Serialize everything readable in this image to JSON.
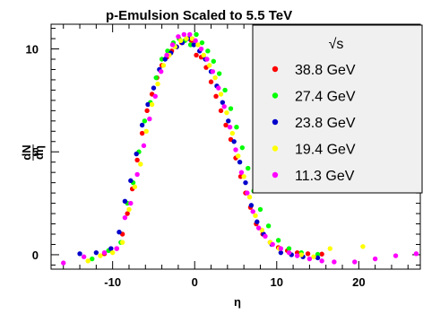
{
  "chart_data": {
    "type": "scatter",
    "title": "p-Emulsion Scaled to 5.5 TeV",
    "xlabel": "η",
    "ylabel_numerator": "dN",
    "ylabel_denominator": "dη",
    "xlim": [
      -17.5,
      27.5
    ],
    "ylim": [
      -0.7,
      11.2
    ],
    "xticks": [
      -10,
      0,
      10,
      20
    ],
    "yticks": [
      0,
      5,
      10
    ],
    "grid": false,
    "legend_placement": "top-right",
    "legend_header": "√s",
    "series": [
      {
        "name": "38.8 GeV",
        "color": "#ff0000",
        "x": [
          -11,
          -9.5,
          -8.8,
          -8.2,
          -7.6,
          -7,
          -6.4,
          -5.8,
          -5.2,
          -4.6,
          -4,
          -3.4,
          -2.8,
          -2.2,
          -1.6,
          -1,
          -0.4,
          0.2,
          0.8,
          1.4,
          2,
          2.6,
          3.2,
          3.8,
          4.4,
          5,
          5.6,
          6.2,
          6.8,
          7.5,
          8.3,
          9.2,
          10.2,
          11.3,
          12.5,
          13.8,
          15.5
        ],
        "y": [
          0.05,
          0.3,
          1.0,
          2.0,
          3.2,
          4.6,
          5.9,
          7.0,
          7.8,
          8.6,
          9.2,
          9.6,
          9.9,
          10.1,
          10.3,
          10.5,
          10.4,
          9.7,
          9.6,
          9.1,
          8.4,
          7.7,
          7.0,
          6.3,
          5.6,
          4.7,
          3.8,
          3.0,
          2.3,
          1.5,
          1.0,
          0.6,
          0.35,
          0.2,
          0.1,
          0.05,
          0.03
        ]
      },
      {
        "name": "27.4 GeV",
        "color": "#00ff00",
        "x": [
          -12.5,
          -10.5,
          -9,
          -8.2,
          -7.5,
          -6.8,
          -6.1,
          -5.4,
          -4.7,
          -4,
          -3.3,
          -2.6,
          -1.9,
          -1.2,
          -0.5,
          0.2,
          0.9,
          1.6,
          2.3,
          3,
          3.7,
          4.4,
          5.1,
          5.8,
          6.5,
          7.2,
          8,
          9,
          10.2,
          11.5,
          13,
          15
        ],
        "y": [
          -0.2,
          0.2,
          0.6,
          2.5,
          3.5,
          5.0,
          6.5,
          7.4,
          8.6,
          9.5,
          9.9,
          10.3,
          10.5,
          10.4,
          10.2,
          10.7,
          10.3,
          9.9,
          9.4,
          8.8,
          8.0,
          7.1,
          6.2,
          5.2,
          4.2,
          3.1,
          2.2,
          1.4,
          0.7,
          0.3,
          0.1,
          0.02
        ]
      },
      {
        "name": "23.8 GeV",
        "color": "#0000cc",
        "x": [
          -14,
          -12,
          -10.2,
          -9.2,
          -8.5,
          -7.8,
          -7.1,
          -6.4,
          -5.7,
          -5,
          -4.3,
          -3.6,
          -2.9,
          -2.2,
          -1.5,
          -0.8,
          -0.1,
          0.6,
          1.3,
          2,
          2.7,
          3.4,
          4.1,
          4.8,
          5.5,
          6.2,
          6.9,
          7.6,
          8.4,
          9.4,
          10.5,
          11.8,
          13.2,
          15
        ],
        "y": [
          0.05,
          0.1,
          0.3,
          1.1,
          2.6,
          3.6,
          4.9,
          6.3,
          7.3,
          8.1,
          9.0,
          9.5,
          9.8,
          10.1,
          10.3,
          10.5,
          10.2,
          9.9,
          9.5,
          8.9,
          8.2,
          7.4,
          6.5,
          5.5,
          4.5,
          3.5,
          2.4,
          1.6,
          1.0,
          0.5,
          0.1,
          0.0,
          -0.1,
          -0.15
        ]
      },
      {
        "name": "19.4 GeV",
        "color": "#ffff00",
        "x": [
          -13,
          -11.5,
          -10,
          -8.8,
          -8,
          -7.3,
          -6.6,
          -5.9,
          -5.2,
          -4.5,
          -3.8,
          -3.1,
          -2.4,
          -1.7,
          -1,
          -0.3,
          0.4,
          1.1,
          1.8,
          2.5,
          3.2,
          3.9,
          4.6,
          5.3,
          6,
          6.7,
          7.4,
          8.2,
          9.2,
          10.3,
          11.5,
          13,
          14.5,
          16.5,
          20.5
        ],
        "y": [
          -0.3,
          -0.05,
          0.1,
          0.6,
          2.2,
          3.3,
          4.4,
          6.0,
          7.3,
          8.3,
          9.2,
          9.7,
          10.1,
          10.4,
          10.5,
          10.5,
          10.2,
          9.7,
          9.2,
          8.6,
          7.8,
          6.9,
          5.9,
          4.8,
          3.8,
          2.8,
          1.9,
          1.2,
          0.6,
          0.3,
          0.1,
          0.0,
          -0.1,
          0.3,
          0.4
        ]
      },
      {
        "name": "11.3 GeV",
        "color": "#ff00ff",
        "x": [
          -16,
          -13.5,
          -11,
          -9.5,
          -8.5,
          -7.8,
          -7,
          -6.2,
          -5.5,
          -4.8,
          -4.1,
          -3.4,
          -2.7,
          -2,
          -1.3,
          -0.6,
          0.1,
          0.8,
          1.5,
          2.2,
          2.9,
          3.6,
          4.3,
          5,
          5.7,
          6.4,
          7.1,
          7.8,
          8.6,
          9.5,
          10.5,
          11.5,
          12.5,
          14,
          15.5,
          17,
          19.5,
          22,
          24.5,
          27
        ],
        "y": [
          -0.4,
          -0.1,
          0.1,
          0.3,
          1.8,
          2.5,
          3.9,
          5.3,
          6.6,
          7.7,
          8.9,
          9.7,
          10.2,
          10.6,
          10.7,
          10.7,
          10.4,
          10.0,
          9.5,
          8.9,
          8.1,
          7.2,
          6.2,
          5.1,
          4.0,
          3.0,
          2.1,
          1.3,
          0.9,
          0.5,
          0.3,
          0.1,
          -0.05,
          -0.2,
          -0.3,
          -0.35,
          -0.35,
          -0.2,
          -0.05,
          0.05
        ]
      }
    ]
  }
}
